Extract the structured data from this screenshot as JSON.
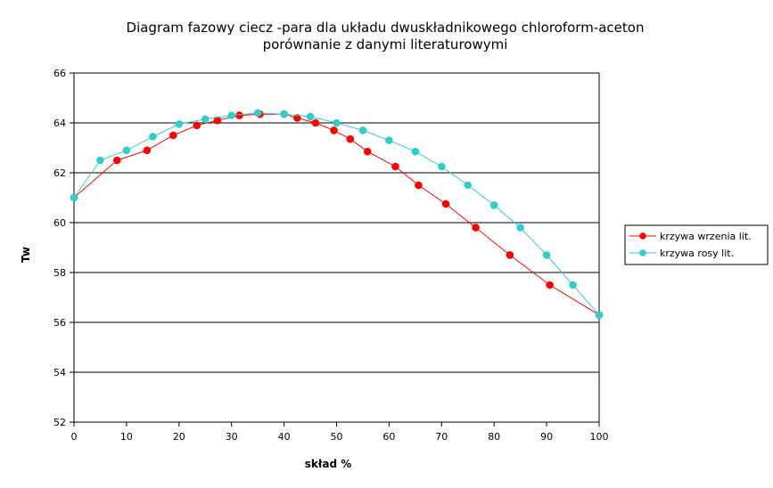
{
  "chart_data": {
    "type": "line",
    "title_lines": [
      "Diagram fazowy ciecz -para dla układu dwuskładnikowego chloroform-aceton",
      "porównanie z danymi literaturowymi"
    ],
    "xlabel": "skład %",
    "ylabel": "Tw",
    "xlim": [
      0,
      100
    ],
    "ylim": [
      52,
      66
    ],
    "x_ticks": [
      0,
      10,
      20,
      30,
      40,
      50,
      60,
      70,
      80,
      90,
      100
    ],
    "y_ticks": [
      52,
      54,
      56,
      58,
      60,
      62,
      64,
      66
    ],
    "grid": "horizontal",
    "legend_position": "right",
    "series": [
      {
        "name": "krzywa wrzenia lit.",
        "color": "#ff0000",
        "marker": "circle",
        "x": [
          0,
          8.2,
          13.9,
          18.9,
          23.4,
          27.3,
          31.5,
          35.4,
          40.0,
          42.5,
          46.0,
          49.5,
          52.6,
          55.9,
          61.2,
          65.6,
          70.8,
          76.5,
          83.0,
          90.6,
          100
        ],
        "y": [
          61.0,
          62.5,
          62.9,
          63.5,
          63.9,
          64.1,
          64.3,
          64.35,
          64.35,
          64.2,
          64.0,
          63.7,
          63.35,
          62.85,
          62.25,
          61.5,
          60.75,
          59.8,
          58.7,
          57.5,
          56.3
        ]
      },
      {
        "name": "krzywa rosy lit.",
        "color": "#33cccc",
        "marker": "circle",
        "x": [
          0,
          5,
          10,
          15,
          20,
          25,
          30,
          35,
          40,
          45,
          50,
          55,
          60,
          65,
          70,
          75,
          80,
          85,
          90,
          95,
          100
        ],
        "y": [
          61.0,
          62.5,
          62.9,
          63.45,
          63.95,
          64.15,
          64.3,
          64.4,
          64.35,
          64.25,
          64.0,
          63.7,
          63.3,
          62.85,
          62.25,
          61.5,
          60.7,
          59.8,
          58.7,
          57.5,
          56.3
        ]
      }
    ]
  }
}
